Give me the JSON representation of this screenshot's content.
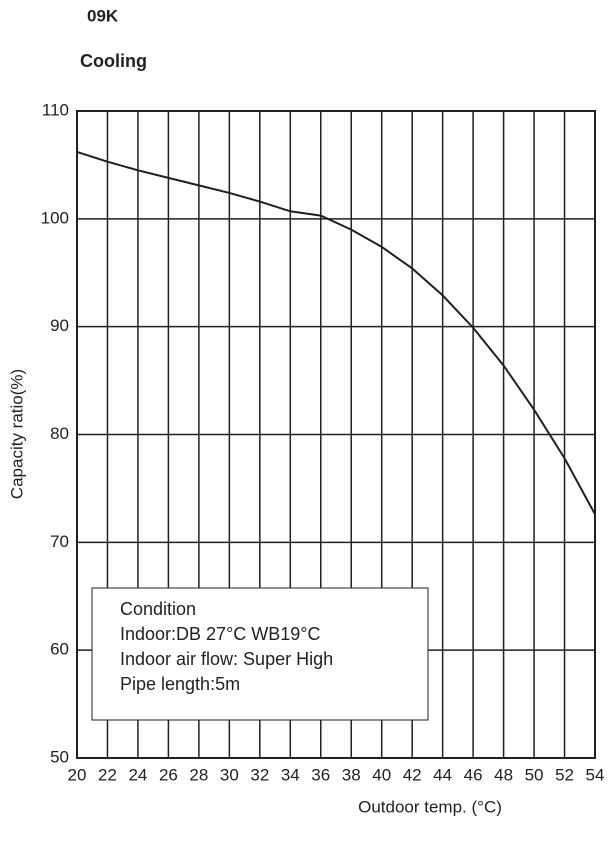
{
  "chart_data": {
    "type": "line",
    "model": "09K",
    "title": "Cooling",
    "xlabel": "Outdoor temp. (°C)",
    "ylabel": "Capacity ratio(%)",
    "x": [
      20,
      22,
      24,
      26,
      28,
      30,
      32,
      34,
      36,
      38,
      40,
      42,
      44,
      46,
      48,
      50,
      52,
      54
    ],
    "series": [
      {
        "name": "Capacity ratio",
        "color": "#231f20",
        "values": [
          106.2,
          105.3,
          104.5,
          103.8,
          103.1,
          102.4,
          101.6,
          100.7,
          100.3,
          99.0,
          97.4,
          95.4,
          92.9,
          89.9,
          86.4,
          82.3,
          77.8,
          72.6
        ]
      }
    ],
    "xlim": [
      20,
      54
    ],
    "ylim": [
      50,
      110
    ],
    "xticks": [
      20,
      22,
      24,
      26,
      28,
      30,
      32,
      34,
      36,
      38,
      40,
      42,
      44,
      46,
      48,
      50,
      52,
      54
    ],
    "yticks": [
      50,
      60,
      70,
      80,
      90,
      100,
      110
    ],
    "grid": true,
    "annotation": [
      "Condition",
      "Indoor:DB 27°C  WB19°C",
      "Indoor air flow: Super High",
      "Pipe length:5m"
    ]
  }
}
